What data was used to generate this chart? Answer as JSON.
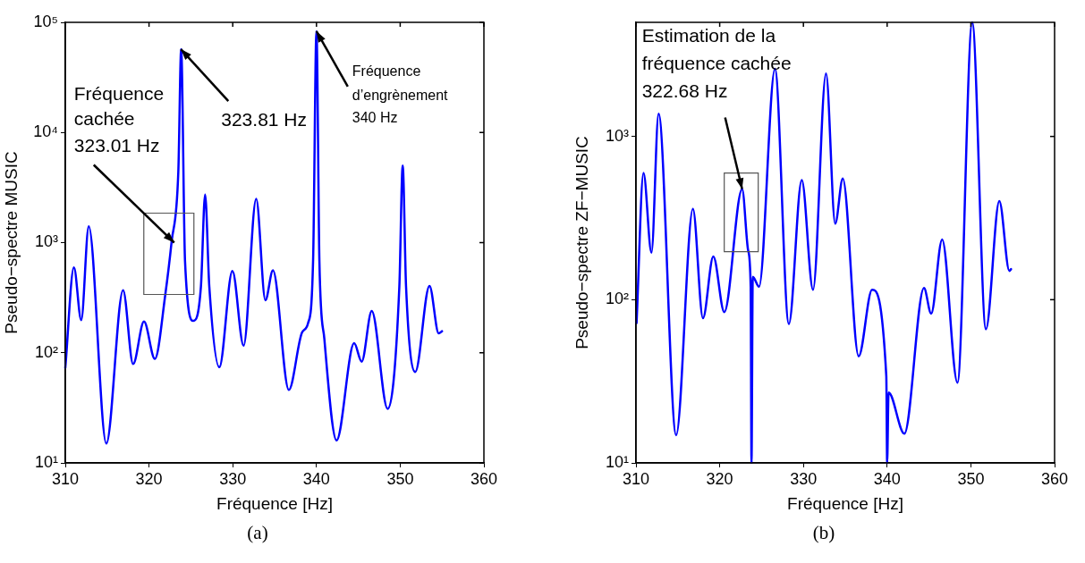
{
  "chart_data": [
    {
      "type": "line",
      "xlabel": "Fréquence [Hz]",
      "ylabel": "Pseudo−spectre MUSIC",
      "log": "y",
      "grid": false,
      "legend": false,
      "marker": "none",
      "line_style": "solid",
      "xlim": [
        310,
        360
      ],
      "xticks": [
        310,
        320,
        330,
        340,
        350,
        360
      ],
      "ylim": [
        10,
        100000
      ],
      "yticks": [
        {
          "value": 10,
          "label": "10¹"
        },
        {
          "value": 100,
          "label": "10²"
        },
        {
          "value": 1000,
          "label": "10³"
        },
        {
          "value": 10000,
          "label": "10⁴"
        },
        {
          "value": 100000,
          "label": "10⁵"
        }
      ],
      "series": [
        {
          "color": "#0000ff",
          "x": [
            310.0,
            311.03,
            311.9,
            312.8,
            314.9,
            316.9,
            318.1,
            319.4,
            320.7,
            321.95,
            322.7,
            323.5,
            323.84,
            324.3,
            325.3,
            326.2,
            326.7,
            327.2,
            328.4,
            329.96,
            331.3,
            332.8,
            333.9,
            334.8,
            336.7,
            338.3,
            339.0,
            339.6,
            340.0,
            340.35,
            340.95,
            342.4,
            344.5,
            345.4,
            346.6,
            348.5,
            349.9,
            350.3,
            350.7,
            351.8,
            353.5,
            354.6,
            355.0
          ],
          "values": [
            73,
            596,
            198,
            1406,
            15,
            369,
            79,
            192,
            88,
            340,
            1020,
            4400,
            57000,
            680,
            195,
            400,
            2735,
            400,
            74,
            553,
            116,
            2500,
            300,
            560,
            46,
            154,
            186,
            700,
            83000,
            680,
            132,
            16,
            122,
            83,
            239,
            31,
            400,
            5000,
            400,
            67,
            405,
            150,
            157
          ]
        }
      ],
      "annotations": [
        {
          "text": "Fréquence\ncachée\n323.01 Hz",
          "x": 323.01,
          "y": 1000
        },
        {
          "text": "323.81 Hz",
          "x": 323.81,
          "y": 57000
        },
        {
          "text": "Fréquence\nd’engrènement\n340 Hz",
          "x": 340,
          "y": 83000
        },
        "(a)"
      ]
    },
    {
      "type": "line",
      "xlabel": "Fréquence [Hz]",
      "ylabel": "Pseudo−spectre ZF−MUSIC",
      "log": "y",
      "grid": false,
      "legend": false,
      "marker": "none",
      "line_style": "solid",
      "xlim": [
        310,
        360
      ],
      "xticks": [
        310,
        320,
        330,
        340,
        350,
        360
      ],
      "ylim": [
        10,
        5000
      ],
      "yticks": [
        {
          "value": 10,
          "label": "10¹"
        },
        {
          "value": 100,
          "label": "10²"
        },
        {
          "value": 1000,
          "label": "10³"
        }
      ],
      "series": [
        {
          "color": "#0000ff",
          "x": [
            310.07,
            310.9,
            311.85,
            312.7,
            314.8,
            316.8,
            318.0,
            319.24,
            320.55,
            322.68,
            323.4,
            323.7,
            323.8,
            323.95,
            324.7,
            326.6,
            328.26,
            329.8,
            331.15,
            332.7,
            333.8,
            334.7,
            336.6,
            338.2,
            339.9,
            340.0,
            340.17,
            342.06,
            344.4,
            345.26,
            346.57,
            348.4,
            350.16,
            351.8,
            353.4,
            354.6,
            354.8
          ],
          "values": [
            72,
            597,
            194,
            1378,
            14.8,
            360,
            77,
            184,
            84,
            476,
            200,
            120,
            10,
            138,
            120,
            2600,
            71,
            541,
            115,
            2430,
            292,
            552,
            45,
            115,
            34,
            10,
            27,
            15.1,
            118,
            82,
            234,
            31,
            5000,
            66,
            402,
            150,
            154
          ]
        }
      ],
      "annotations": [
        {
          "text": "Estimation de la\nfréquence cachée\n322.68 Hz",
          "x": 322.68,
          "y": 476
        },
        "(b)"
      ]
    }
  ]
}
